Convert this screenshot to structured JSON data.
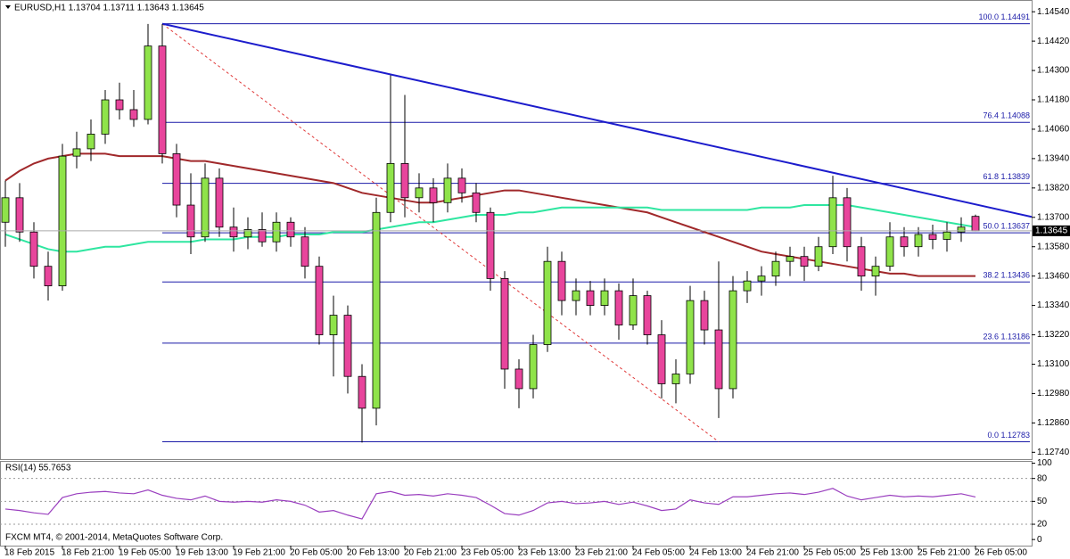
{
  "chart_data": [
    {
      "type": "candlestick",
      "title": "EURUSD,H1 1.13704 1.13711 1.13643 1.13645",
      "footer": "FXCM MT4, © 2001-2014, MetaQuotes Software Corp.",
      "bull_color": "#8fe34a",
      "bear_color": "#e8459c",
      "ylim": [
        1.12712,
        1.14588
      ],
      "yticks": [
        {
          "value": 1.1274,
          "label": "1.12740"
        },
        {
          "value": 1.1286,
          "label": "1.12860"
        },
        {
          "value": 1.1298,
          "label": "1.12980"
        },
        {
          "value": 1.131,
          "label": "1.13100"
        },
        {
          "value": 1.1322,
          "label": "1.13220"
        },
        {
          "value": 1.1334,
          "label": "1.13340"
        },
        {
          "value": 1.1346,
          "label": "1.13460"
        },
        {
          "value": 1.1358,
          "label": "1.13580"
        },
        {
          "value": 1.137,
          "label": "1.13700"
        },
        {
          "value": 1.1382,
          "label": "1.13820"
        },
        {
          "value": 1.1394,
          "label": "1.13940"
        },
        {
          "value": 1.1406,
          "label": "1.14060"
        },
        {
          "value": 1.1418,
          "label": "1.14180"
        },
        {
          "value": 1.143,
          "label": "1.14300"
        },
        {
          "value": 1.1442,
          "label": "1.14420"
        },
        {
          "value": 1.1454,
          "label": "1.14540"
        }
      ],
      "x_labels": [
        "18 Feb 2015",
        "18 Feb 21:00",
        "19 Feb 05:00",
        "19 Feb 13:00",
        "19 Feb 21:00",
        "20 Feb 05:00",
        "20 Feb 13:00",
        "20 Feb 21:00",
        "23 Feb 05:00",
        "23 Feb 13:00",
        "23 Feb 21:00",
        "24 Feb 05:00",
        "24 Feb 13:00",
        "24 Feb 21:00",
        "25 Feb 05:00",
        "25 Feb 13:00",
        "25 Feb 21:00",
        "26 Feb 05:00"
      ],
      "candles": [
        [
          1.1368,
          1.1385,
          1.1358,
          1.1378
        ],
        [
          1.1378,
          1.1384,
          1.136,
          1.1364
        ],
        [
          1.1364,
          1.1368,
          1.1345,
          1.135
        ],
        [
          1.135,
          1.1356,
          1.1336,
          1.1342
        ],
        [
          1.1342,
          1.14,
          1.134,
          1.1395
        ],
        [
          1.1395,
          1.1405,
          1.139,
          1.1398
        ],
        [
          1.1398,
          1.141,
          1.1393,
          1.1404
        ],
        [
          1.1404,
          1.1422,
          1.14,
          1.1418
        ],
        [
          1.1418,
          1.1425,
          1.141,
          1.1414
        ],
        [
          1.1414,
          1.1422,
          1.1407,
          1.141
        ],
        [
          1.141,
          1.1449,
          1.1408,
          1.144
        ],
        [
          1.144,
          1.1449,
          1.1392,
          1.1396
        ],
        [
          1.1396,
          1.14,
          1.137,
          1.1375
        ],
        [
          1.1375,
          1.1388,
          1.1355,
          1.1362
        ],
        [
          1.1362,
          1.1392,
          1.136,
          1.1386
        ],
        [
          1.1386,
          1.139,
          1.1362,
          1.1366
        ],
        [
          1.1366,
          1.1374,
          1.1356,
          1.1362
        ],
        [
          1.1362,
          1.137,
          1.1357,
          1.1365
        ],
        [
          1.1365,
          1.1372,
          1.1358,
          1.136
        ],
        [
          1.136,
          1.1372,
          1.1356,
          1.1368
        ],
        [
          1.1368,
          1.137,
          1.1358,
          1.1362
        ],
        [
          1.1362,
          1.1366,
          1.1345,
          1.135
        ],
        [
          1.135,
          1.1354,
          1.1318,
          1.1322
        ],
        [
          1.1322,
          1.1338,
          1.1305,
          1.133
        ],
        [
          1.133,
          1.1334,
          1.1298,
          1.1305
        ],
        [
          1.1305,
          1.131,
          1.1278,
          1.1292
        ],
        [
          1.1292,
          1.1378,
          1.1285,
          1.1372
        ],
        [
          1.1372,
          1.1428,
          1.1368,
          1.1392
        ],
        [
          1.1392,
          1.142,
          1.137,
          1.1378
        ],
        [
          1.1378,
          1.1388,
          1.1372,
          1.1382
        ],
        [
          1.1382,
          1.1386,
          1.1368,
          1.1376
        ],
        [
          1.1376,
          1.1392,
          1.1372,
          1.1386
        ],
        [
          1.1386,
          1.139,
          1.1376,
          1.138
        ],
        [
          1.138,
          1.1384,
          1.1368,
          1.1372
        ],
        [
          1.1372,
          1.1374,
          1.134,
          1.1345
        ],
        [
          1.1345,
          1.1348,
          1.13,
          1.1308
        ],
        [
          1.1308,
          1.1312,
          1.1292,
          1.13
        ],
        [
          1.13,
          1.1322,
          1.1296,
          1.1318
        ],
        [
          1.1318,
          1.1358,
          1.1315,
          1.1352
        ],
        [
          1.1352,
          1.1356,
          1.133,
          1.1336
        ],
        [
          1.1336,
          1.1345,
          1.133,
          1.134
        ],
        [
          1.134,
          1.1344,
          1.133,
          1.1334
        ],
        [
          1.1334,
          1.1345,
          1.133,
          1.134
        ],
        [
          1.134,
          1.1343,
          1.132,
          1.1326
        ],
        [
          1.1326,
          1.1345,
          1.1324,
          1.1338
        ],
        [
          1.1338,
          1.134,
          1.1318,
          1.1322
        ],
        [
          1.1322,
          1.1328,
          1.1296,
          1.1302
        ],
        [
          1.1302,
          1.1312,
          1.1294,
          1.1306
        ],
        [
          1.1306,
          1.1342,
          1.1302,
          1.1336
        ],
        [
          1.1336,
          1.134,
          1.1318,
          1.1324
        ],
        [
          1.1324,
          1.1352,
          1.1288,
          1.13
        ],
        [
          1.13,
          1.1346,
          1.1296,
          1.134
        ],
        [
          1.134,
          1.1348,
          1.1335,
          1.1344
        ],
        [
          1.1344,
          1.135,
          1.1338,
          1.1346
        ],
        [
          1.1346,
          1.1356,
          1.1342,
          1.1352
        ],
        [
          1.1352,
          1.1358,
          1.1346,
          1.1354
        ],
        [
          1.1354,
          1.1358,
          1.1344,
          1.135
        ],
        [
          1.135,
          1.1362,
          1.1348,
          1.1358
        ],
        [
          1.1358,
          1.1387,
          1.1355,
          1.1378
        ],
        [
          1.1378,
          1.1382,
          1.1352,
          1.1358
        ],
        [
          1.1358,
          1.1362,
          1.134,
          1.1346
        ],
        [
          1.1346,
          1.1354,
          1.1338,
          1.135
        ],
        [
          1.135,
          1.1368,
          1.1348,
          1.1362
        ],
        [
          1.1362,
          1.1366,
          1.1354,
          1.1358
        ],
        [
          1.1358,
          1.1366,
          1.1354,
          1.1363
        ],
        [
          1.1363,
          1.1367,
          1.1357,
          1.1361
        ],
        [
          1.1361,
          1.1368,
          1.1356,
          1.1364
        ],
        [
          1.1364,
          1.137,
          1.136,
          1.1366
        ],
        [
          1.13704,
          1.13711,
          1.13643,
          1.13645
        ]
      ],
      "series": [
        {
          "color": "#a0282a",
          "values": [
            1.1385,
            1.1389,
            1.1392,
            1.1394,
            1.1395,
            1.1396,
            1.1396,
            1.1396,
            1.1395,
            1.1395,
            1.1395,
            1.1395,
            1.1394,
            1.1393,
            1.1393,
            1.1392,
            1.1391,
            1.139,
            1.1389,
            1.1388,
            1.1387,
            1.1386,
            1.1385,
            1.1384,
            1.1382,
            1.138,
            1.1379,
            1.1378,
            1.1377,
            1.1376,
            1.1376,
            1.1377,
            1.1378,
            1.1379,
            1.138,
            1.1381,
            1.1381,
            1.138,
            1.1379,
            1.1378,
            1.1377,
            1.1376,
            1.1375,
            1.1374,
            1.1373,
            1.1372,
            1.137,
            1.1368,
            1.1366,
            1.1364,
            1.1362,
            1.136,
            1.1358,
            1.1356,
            1.1355,
            1.1354,
            1.1353,
            1.1352,
            1.1351,
            1.135,
            1.1349,
            1.1348,
            1.1347,
            1.1347,
            1.1346,
            1.1346,
            1.1346,
            1.1346,
            1.1346
          ]
        },
        {
          "color": "#2ee6a0",
          "values": [
            1.1363,
            1.1361,
            1.1359,
            1.1357,
            1.1356,
            1.1356,
            1.1357,
            1.1358,
            1.1358,
            1.1359,
            1.136,
            1.136,
            1.136,
            1.136,
            1.1361,
            1.1361,
            1.1361,
            1.1362,
            1.1362,
            1.1362,
            1.1363,
            1.1363,
            1.1363,
            1.1364,
            1.1364,
            1.1364,
            1.1365,
            1.1366,
            1.1367,
            1.1368,
            1.1368,
            1.1369,
            1.137,
            1.1371,
            1.1371,
            1.1371,
            1.1372,
            1.1372,
            1.1373,
            1.1374,
            1.1374,
            1.1374,
            1.1374,
            1.1374,
            1.1374,
            1.1374,
            1.1373,
            1.1373,
            1.1373,
            1.1373,
            1.1373,
            1.1373,
            1.1373,
            1.1374,
            1.1374,
            1.1374,
            1.1375,
            1.1375,
            1.1375,
            1.1375,
            1.1374,
            1.1373,
            1.1372,
            1.1371,
            1.137,
            1.1369,
            1.1368,
            1.1367,
            1.1366
          ]
        }
      ],
      "fib_color": "#1a1aa8",
      "fib_levels": [
        {
          "value": 1.14491,
          "label": "100.0 1.14491"
        },
        {
          "value": 1.14088,
          "label": "76.4 1.14088"
        },
        {
          "value": 1.13839,
          "label": "61.8 1.13839"
        },
        {
          "value": 1.13637,
          "label": "50.0 1.13637"
        },
        {
          "value": 1.13436,
          "label": "38.2 1.13436"
        },
        {
          "value": 1.13186,
          "label": "23.6 1.13186"
        },
        {
          "value": 1.12783,
          "label": "0.0 1.12783"
        }
      ],
      "trendline": {
        "color": "#1c1ccc",
        "values": [
          1.14491,
          1.13702
        ]
      },
      "fib_anchor_line": {
        "color": "#e03a3a",
        "values": [
          1.14491,
          1.12783
        ]
      }
    },
    {
      "type": "line",
      "title": "RSI(14) 55.7653",
      "color": "#9a3fbf",
      "ylim": [
        -8,
        103
      ],
      "yticks": [
        100,
        80,
        50,
        20,
        0
      ],
      "levels": [
        80,
        50,
        20
      ],
      "values": [
        40,
        38,
        35,
        33,
        55,
        60,
        62,
        63,
        61,
        60,
        65,
        58,
        54,
        52,
        57,
        50,
        49,
        50,
        49,
        52,
        50,
        45,
        36,
        38,
        32,
        27,
        60,
        63,
        58,
        59,
        57,
        60,
        58,
        55,
        45,
        34,
        32,
        38,
        48,
        50,
        47,
        48,
        50,
        46,
        49,
        44,
        38,
        40,
        52,
        48,
        46,
        56,
        56,
        58,
        60,
        61,
        59,
        62,
        67,
        57,
        52,
        55,
        58,
        56,
        57,
        56,
        58,
        60,
        55.7653
      ]
    }
  ]
}
